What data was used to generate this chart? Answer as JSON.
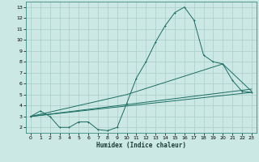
{
  "xlabel": "Humidex (Indice chaleur)",
  "background_color": "#cce8e4",
  "grid_color": "#aaccc8",
  "line_color": "#1a6e64",
  "xlim": [
    -0.5,
    23.5
  ],
  "ylim": [
    1.5,
    13.5
  ],
  "xticks": [
    0,
    1,
    2,
    3,
    4,
    5,
    6,
    7,
    8,
    9,
    10,
    11,
    12,
    13,
    14,
    15,
    16,
    17,
    18,
    19,
    20,
    21,
    22,
    23
  ],
  "yticks": [
    2,
    3,
    4,
    5,
    6,
    7,
    8,
    9,
    10,
    11,
    12,
    13
  ],
  "series1_x": [
    0,
    1,
    2,
    3,
    4,
    5,
    6,
    7,
    8,
    9,
    10,
    11,
    12,
    13,
    14,
    15,
    16,
    17,
    18,
    19,
    20,
    21,
    22,
    23
  ],
  "series1_y": [
    3.0,
    3.5,
    3.0,
    2.0,
    2.0,
    2.5,
    2.5,
    1.8,
    1.7,
    2.0,
    4.2,
    6.5,
    8.0,
    9.8,
    11.3,
    12.5,
    13.0,
    11.8,
    8.6,
    8.0,
    7.8,
    6.3,
    5.3,
    5.2
  ],
  "series2_x": [
    0,
    23
  ],
  "series2_y": [
    3.0,
    5.2
  ],
  "series3_x": [
    0,
    10,
    20,
    23
  ],
  "series3_y": [
    3.0,
    5.0,
    7.8,
    5.3
  ],
  "series4_x": [
    0,
    23
  ],
  "series4_y": [
    3.0,
    5.5
  ]
}
